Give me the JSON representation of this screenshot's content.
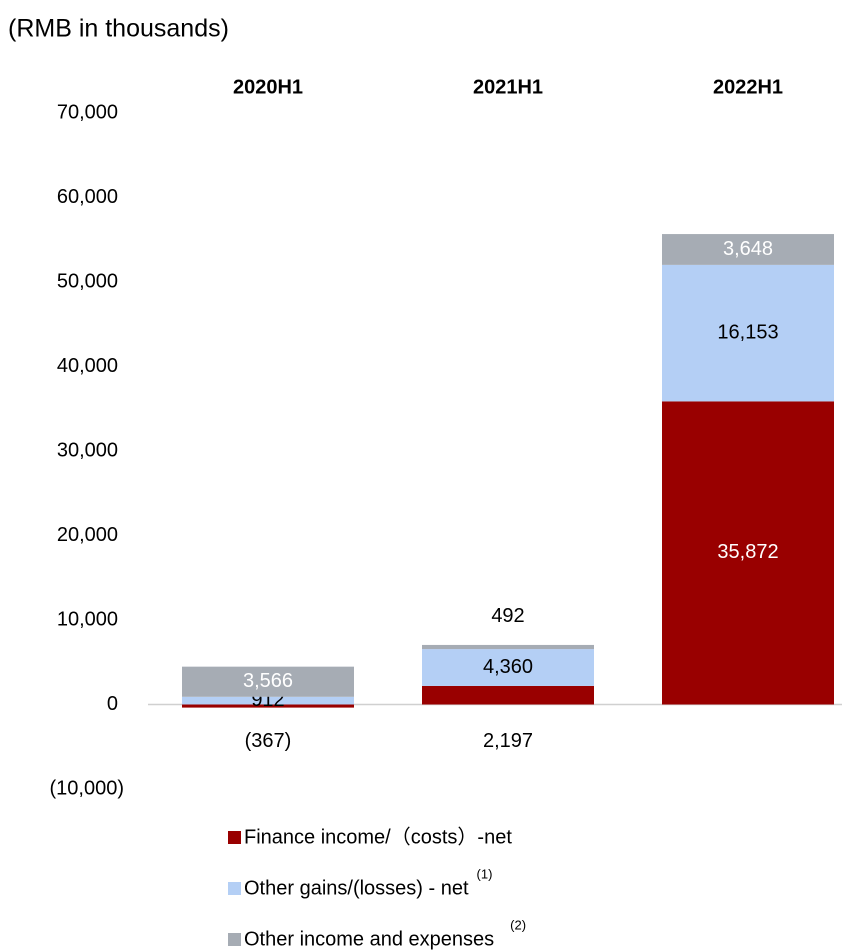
{
  "chart_data": {
    "type": "stacked_bar",
    "y_axis_label": "(RMB in thousands)",
    "categories": [
      "2020H1",
      "2021H1",
      "2022H1"
    ],
    "series": [
      {
        "name": "Finance income/（costs）-net",
        "color": "#990000",
        "values": [
          -367,
          2197,
          35872
        ],
        "value_labels": [
          "(367)",
          "2,197",
          "35,872"
        ]
      },
      {
        "name": "Other gains/(losses) - net",
        "note": "(1)",
        "color": "#b4cff5",
        "values": [
          912,
          4360,
          16153
        ],
        "value_labels": [
          "912",
          "4,360",
          "16,153"
        ]
      },
      {
        "name": "Other income and expenses",
        "note": "(2)",
        "color": "#a6acb4",
        "values": [
          3566,
          492,
          3648
        ],
        "value_labels": [
          "3,566",
          "492",
          "3,648"
        ]
      }
    ],
    "ylim": [
      -10000,
      70000
    ],
    "yticks": [
      {
        "value": -10000,
        "label": "(10,000)"
      },
      0,
      {
        "value": 10000,
        "label": "10,000"
      },
      {
        "value": 20000,
        "label": "20,000"
      },
      {
        "value": 30000,
        "label": "30,000"
      },
      {
        "value": 40000,
        "label": "40,000"
      },
      {
        "value": 50000,
        "label": "50,000"
      },
      {
        "value": 60000,
        "label": "60,000"
      },
      {
        "value": 70000,
        "label": "70,000"
      }
    ],
    "grid": false
  }
}
